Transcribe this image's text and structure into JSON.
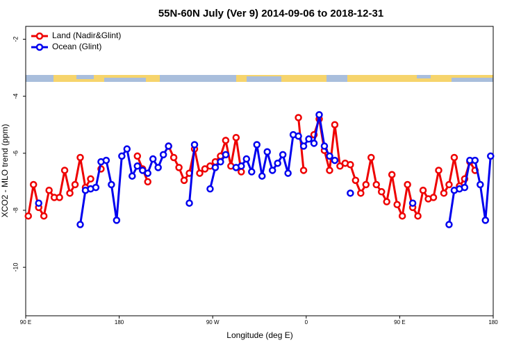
{
  "chart_data": {
    "type": "line",
    "title": "55N-60N July (Ver 9)   2014-09-06 to 2018-12-31",
    "xlabel": "Longitude (deg E)",
    "ylabel": "XCO2 - MLO trend (ppm)",
    "x": [
      92.5,
      97.5,
      102.5,
      107.5,
      112.5,
      117.5,
      122.5,
      127.5,
      132.5,
      137.5,
      142.5,
      147.5,
      152.5,
      157.5,
      162.5,
      167.5,
      172.5,
      177.5,
      182.5,
      187.5,
      192.5,
      197.5,
      202.5,
      207.5,
      212.5,
      217.5,
      222.5,
      227.5,
      232.5,
      237.5,
      242.5,
      247.5,
      252.5,
      257.5,
      262.5,
      267.5,
      272.5,
      277.5,
      282.5,
      287.5,
      292.5,
      297.5,
      302.5,
      307.5,
      312.5,
      317.5,
      322.5,
      327.5,
      332.5,
      337.5,
      342.5,
      347.5,
      352.5,
      357.5,
      362.5,
      367.5,
      372.5,
      377.5,
      382.5,
      387.5,
      392.5,
      397.5,
      402.5,
      407.5,
      412.5,
      417.5,
      422.5,
      427.5,
      432.5,
      437.5,
      442.5,
      447.5,
      452.5,
      457.5,
      462.5,
      467.5,
      472.5,
      477.5,
      482.5,
      487.5,
      492.5,
      497.5,
      502.5,
      507.5,
      512.5,
      517.5,
      522.5,
      527.5,
      532.5,
      537.5
    ],
    "series": [
      {
        "name": "Land (Nadir&Glint)",
        "color": "#ee0000",
        "values": [
          -8.2,
          -7.1,
          -7.9,
          -8.2,
          -7.3,
          -7.55,
          -7.55,
          -6.6,
          -7.4,
          -7.1,
          -6.15,
          -7.2,
          -6.9,
          null,
          -6.55,
          null,
          null,
          null,
          null,
          null,
          null,
          -6.1,
          -6.55,
          -7.0,
          null,
          null,
          null,
          -5.75,
          -6.15,
          -6.5,
          -6.95,
          -6.7,
          -5.85,
          -6.7,
          -6.55,
          -6.45,
          -6.3,
          -6.1,
          -5.55,
          -6.45,
          -5.45,
          -6.65,
          null,
          null,
          null,
          null,
          null,
          null,
          null,
          null,
          null,
          null,
          -4.75,
          -6.6,
          null,
          -5.35,
          -4.8,
          -5.9,
          -6.6,
          -5.0,
          -6.45,
          -6.35,
          -6.4,
          -6.95,
          -7.4,
          -7.1,
          -6.15,
          -7.1,
          -7.35,
          -7.7,
          -6.75,
          -7.8,
          -8.2,
          -7.1,
          -7.9,
          -8.2,
          -7.3,
          -7.6,
          -7.55,
          -6.6,
          -7.4,
          -7.1,
          -6.15,
          -7.15,
          -6.9,
          -6.3,
          -6.6,
          null,
          null,
          null
        ]
      },
      {
        "name": "Ocean (Glint)",
        "color": "#0000ee",
        "values": [
          null,
          null,
          -7.75,
          null,
          null,
          null,
          null,
          null,
          null,
          null,
          -8.5,
          -7.3,
          -7.25,
          -7.2,
          -6.3,
          -6.25,
          -7.1,
          -8.35,
          -6.1,
          -5.85,
          -6.8,
          -6.45,
          -6.6,
          -6.7,
          -6.2,
          -6.5,
          -6.05,
          -5.75,
          null,
          null,
          null,
          -7.75,
          -5.7,
          null,
          null,
          -7.25,
          -6.5,
          -6.3,
          -6.05,
          null,
          -6.5,
          -6.45,
          -6.2,
          -6.65,
          -5.7,
          -6.8,
          -5.95,
          -6.6,
          -6.35,
          -6.05,
          -6.7,
          -5.35,
          -5.4,
          -5.75,
          -5.5,
          -5.65,
          -4.65,
          -5.75,
          -6.1,
          -6.25,
          null,
          null,
          -7.4,
          null,
          null,
          null,
          null,
          null,
          null,
          null,
          null,
          null,
          null,
          null,
          -7.75,
          null,
          null,
          null,
          null,
          null,
          null,
          -8.5,
          -7.3,
          -7.25,
          -7.2,
          -6.25,
          -6.25,
          -7.1,
          -8.35,
          -6.1
        ]
      }
    ],
    "xlim": [
      90,
      540
    ],
    "xticks": [
      {
        "value": 90,
        "label": "90 E"
      },
      180,
      {
        "value": 270,
        "label": "90 W"
      },
      {
        "value": 360,
        "label": "0"
      },
      {
        "value": 450,
        "label": "90 E"
      },
      {
        "value": 540,
        "label": "180"
      }
    ],
    "ylim": [
      -11.7,
      -1.55
    ],
    "yticks": [
      -2,
      -4,
      -6,
      -8,
      -10
    ],
    "legend": "top-left"
  }
}
